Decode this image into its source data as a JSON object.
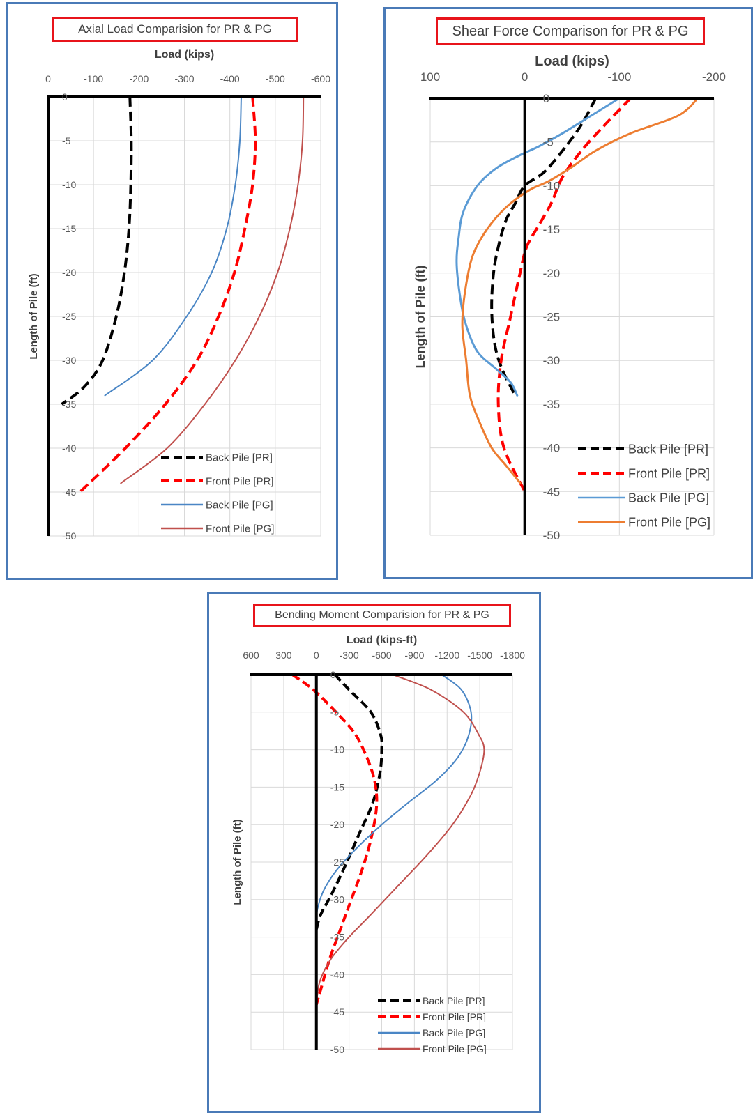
{
  "chart_data": [
    {
      "id": "axial",
      "type": "line",
      "title": "Axial Load Comparision for PR & PG",
      "xlabel": "Load (kips)",
      "ylabel": "Length of Pile (ft)",
      "xlim": [
        0,
        -600
      ],
      "ylim": [
        0,
        -50
      ],
      "x_ticks": [
        "0",
        "-100",
        "-200",
        "-300",
        "-400",
        "-500",
        "-600"
      ],
      "y_ticks": [
        "0",
        "-5",
        "-10",
        "-15",
        "-20",
        "-25",
        "-30",
        "-35",
        "-40",
        "-45",
        "-50"
      ],
      "grid": true,
      "legend_position": "bottom-right",
      "series": [
        {
          "name": "Back Pile [PR]",
          "color": "#000000",
          "style": "dashed",
          "points": [
            [
              -180,
              0
            ],
            [
              -183,
              -5
            ],
            [
              -182,
              -10
            ],
            [
              -178,
              -15
            ],
            [
              -168,
              -20
            ],
            [
              -150,
              -25
            ],
            [
              -120,
              -30
            ],
            [
              -80,
              -33
            ],
            [
              -30,
              -35
            ]
          ]
        },
        {
          "name": "Front Pile [PR]",
          "color": "#ff0000",
          "style": "dashed",
          "points": [
            [
              -450,
              0
            ],
            [
              -456,
              -5
            ],
            [
              -450,
              -10
            ],
            [
              -433,
              -15
            ],
            [
              -410,
              -20
            ],
            [
              -375,
              -25
            ],
            [
              -328,
              -30
            ],
            [
              -258,
              -35
            ],
            [
              -170,
              -40
            ],
            [
              -70,
              -45
            ]
          ]
        },
        {
          "name": "Back Pile [PG]",
          "color": "#4a86c5",
          "style": "solid",
          "points": [
            [
              -425,
              0
            ],
            [
              -422,
              -5
            ],
            [
              -412,
              -10
            ],
            [
              -393,
              -15
            ],
            [
              -360,
              -20
            ],
            [
              -305,
              -25
            ],
            [
              -230,
              -30
            ],
            [
              -125,
              -34
            ]
          ]
        },
        {
          "name": "Front Pile [PG]",
          "color": "#c0504d",
          "style": "solid",
          "points": [
            [
              -562,
              0
            ],
            [
              -560,
              -5
            ],
            [
              -550,
              -10
            ],
            [
              -532,
              -15
            ],
            [
              -505,
              -20
            ],
            [
              -465,
              -25
            ],
            [
              -412,
              -30
            ],
            [
              -345,
              -35
            ],
            [
              -262,
              -40
            ],
            [
              -160,
              -44
            ]
          ]
        }
      ]
    },
    {
      "id": "shear",
      "type": "line",
      "title": "Shear Force Comparison for PR & PG",
      "xlabel": "Load (kips)",
      "ylabel": "Length of Pile (ft)",
      "xlim": [
        100,
        -200
      ],
      "ylim": [
        0,
        -50
      ],
      "x_ticks": [
        "100",
        "0",
        "-100",
        "-200"
      ],
      "y_ticks": [
        "0",
        "-5",
        "-10",
        "-15",
        "-20",
        "-25",
        "-30",
        "-35",
        "-40",
        "-45",
        "-50"
      ],
      "grid": true,
      "legend_position": "bottom-right",
      "series": [
        {
          "name": "Back Pile [PR]",
          "color": "#000000",
          "style": "dashed",
          "points": [
            [
              -75,
              0
            ],
            [
              -60,
              -3
            ],
            [
              -40,
              -6
            ],
            [
              -20,
              -8.5
            ],
            [
              0,
              -10
            ],
            [
              10,
              -12
            ],
            [
              20,
              -14
            ],
            [
              28,
              -17
            ],
            [
              33,
              -20
            ],
            [
              35,
              -24
            ],
            [
              32,
              -28
            ],
            [
              24,
              -31
            ],
            [
              10,
              -34
            ]
          ]
        },
        {
          "name": "Front Pile [PR]",
          "color": "#ff0000",
          "style": "dashed",
          "points": [
            [
              -112,
              0
            ],
            [
              -85,
              -3
            ],
            [
              -60,
              -6
            ],
            [
              -40,
              -9
            ],
            [
              -28,
              -12
            ],
            [
              -15,
              -14.5
            ],
            [
              -2,
              -17
            ],
            [
              5,
              -20
            ],
            [
              15,
              -25
            ],
            [
              25,
              -30
            ],
            [
              28,
              -35
            ],
            [
              22,
              -40
            ],
            [
              0,
              -45
            ]
          ]
        },
        {
          "name": "Back Pile [PG]",
          "color": "#5b9bd5",
          "style": "solid",
          "points": [
            [
              -100,
              0
            ],
            [
              -70,
              -2
            ],
            [
              -40,
              -4
            ],
            [
              -15,
              -5.5
            ],
            [
              5,
              -6.5
            ],
            [
              30,
              -8
            ],
            [
              50,
              -10
            ],
            [
              65,
              -13
            ],
            [
              70,
              -16
            ],
            [
              72,
              -19
            ],
            [
              68,
              -23
            ],
            [
              62,
              -26
            ],
            [
              50,
              -29
            ],
            [
              30,
              -31
            ],
            [
              15,
              -32.5
            ],
            [
              8,
              -34
            ]
          ]
        },
        {
          "name": "Front Pile [PG]",
          "color": "#ed7d31",
          "style": "solid",
          "points": [
            [
              -183,
              0
            ],
            [
              -162,
              -2
            ],
            [
              -112,
              -4
            ],
            [
              -75,
              -6
            ],
            [
              -48,
              -8
            ],
            [
              -25,
              -9.5
            ],
            [
              -5,
              -10.5
            ],
            [
              20,
              -12.5
            ],
            [
              40,
              -15
            ],
            [
              55,
              -18
            ],
            [
              63,
              -22
            ],
            [
              66,
              -26
            ],
            [
              62,
              -30
            ],
            [
              58,
              -34
            ],
            [
              48,
              -37
            ],
            [
              35,
              -40
            ],
            [
              20,
              -42
            ],
            [
              5,
              -44
            ]
          ]
        }
      ]
    },
    {
      "id": "bending",
      "type": "line",
      "title": "Bending Moment Comparision for PR & PG",
      "xlabel": "Load (kips-ft)",
      "ylabel": "Length of Pile (ft)",
      "xlim": [
        600,
        -1800
      ],
      "ylim": [
        0,
        -50
      ],
      "x_ticks": [
        "600",
        "300",
        "0",
        "-300",
        "-600",
        "-900",
        "-1200",
        "-1500",
        "-1800"
      ],
      "y_ticks": [
        "0",
        "-5",
        "-10",
        "-15",
        "-20",
        "-25",
        "-30",
        "-35",
        "-40",
        "-45",
        "-50"
      ],
      "grid": true,
      "legend_position": "bottom-right",
      "series": [
        {
          "name": "Back Pile [PR]",
          "color": "#000000",
          "style": "dashed",
          "points": [
            [
              -170,
              0
            ],
            [
              -300,
              -2
            ],
            [
              -500,
              -5
            ],
            [
              -590,
              -8
            ],
            [
              -600,
              -10
            ],
            [
              -585,
              -13
            ],
            [
              -520,
              -17
            ],
            [
              -400,
              -21
            ],
            [
              -280,
              -25
            ],
            [
              -150,
              -29
            ],
            [
              -40,
              -32
            ],
            [
              0,
              -34
            ]
          ]
        },
        {
          "name": "Front Pile [PR]",
          "color": "#ff0000",
          "style": "dashed",
          "points": [
            [
              220,
              0
            ],
            [
              30,
              -2
            ],
            [
              -180,
              -5
            ],
            [
              -360,
              -8
            ],
            [
              -490,
              -12
            ],
            [
              -545,
              -15
            ],
            [
              -550,
              -18
            ],
            [
              -500,
              -22
            ],
            [
              -420,
              -26
            ],
            [
              -320,
              -30
            ],
            [
              -220,
              -34
            ],
            [
              -120,
              -38
            ],
            [
              -40,
              -42
            ],
            [
              0,
              -44
            ]
          ]
        },
        {
          "name": "Back Pile [PG]",
          "color": "#4a86c5",
          "style": "solid",
          "points": [
            [
              -1150,
              0
            ],
            [
              -1330,
              -2
            ],
            [
              -1420,
              -5
            ],
            [
              -1400,
              -8
            ],
            [
              -1300,
              -11
            ],
            [
              -1110,
              -14
            ],
            [
              -850,
              -17
            ],
            [
              -600,
              -20
            ],
            [
              -380,
              -23
            ],
            [
              -190,
              -26
            ],
            [
              -60,
              -29
            ],
            [
              0,
              -32
            ],
            [
              0,
              -34
            ]
          ]
        },
        {
          "name": "Front Pile [PG]",
          "color": "#c0504d",
          "style": "solid",
          "points": [
            [
              -700,
              0
            ],
            [
              -1050,
              -2
            ],
            [
              -1350,
              -5
            ],
            [
              -1490,
              -8
            ],
            [
              -1540,
              -10
            ],
            [
              -1500,
              -13
            ],
            [
              -1420,
              -16
            ],
            [
              -1250,
              -20
            ],
            [
              -1020,
              -24
            ],
            [
              -760,
              -28
            ],
            [
              -500,
              -32
            ],
            [
              -300,
              -35
            ],
            [
              -130,
              -38
            ],
            [
              -30,
              -41
            ],
            [
              0,
              -44
            ]
          ]
        }
      ]
    }
  ]
}
